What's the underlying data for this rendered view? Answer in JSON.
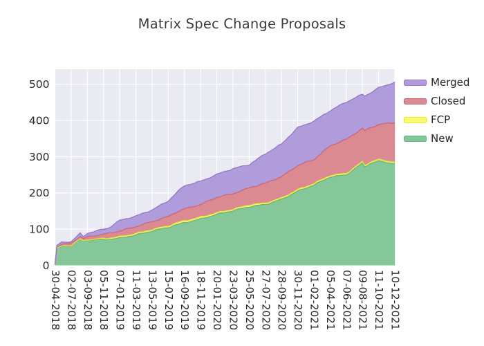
{
  "chart_data": {
    "type": "area",
    "stacked": true,
    "title": "Matrix Spec Change Proposals",
    "plot_background": "#eaeaf2",
    "grid_color": "#ffffff",
    "grid": true,
    "text_color": "#262626",
    "title_color": "#3c3c3c",
    "ylim": [
      0,
      541
    ],
    "yticks": [
      "0",
      "100",
      "200",
      "300",
      "400",
      "500"
    ],
    "ytick_values": [
      0,
      100,
      200,
      300,
      400,
      500
    ],
    "x_tick_labels": [
      "30-04-2018",
      "02-07-2018",
      "03-09-2018",
      "05-11-2018",
      "07-01-2019",
      "11-03-2019",
      "13-05-2019",
      "15-07-2019",
      "16-09-2019",
      "18-11-2019",
      "20-01-2020",
      "23-03-2020",
      "25-05-2020",
      "27-07-2020",
      "28-09-2020",
      "30-11-2020",
      "01-02-2021",
      "05-04-2021",
      "07-06-2021",
      "09-08-2021",
      "11-10-2021",
      "10-12-2021"
    ],
    "x_tick_positions": [
      0,
      1,
      2,
      3,
      4,
      5,
      6,
      7,
      8,
      9,
      10,
      11,
      12,
      13,
      14,
      15,
      16,
      17,
      18,
      19,
      20,
      21
    ],
    "legend_position": "right",
    "legend_order": [
      "Merged",
      "Closed",
      "FCP",
      "New"
    ],
    "x": [
      0,
      0.12,
      0.4,
      1,
      1.55,
      1.75,
      2,
      3,
      3.3,
      4,
      5,
      6,
      7,
      7.5,
      8,
      9,
      10,
      11,
      12,
      13,
      14,
      15,
      16,
      17,
      18,
      19,
      19.15,
      19.45,
      20,
      21
    ],
    "series": [
      {
        "name": "New",
        "fill": "#86c79a",
        "line": "#5fb67e",
        "values": [
          2,
          46,
          52,
          54,
          72,
          66,
          70,
          71,
          72,
          75,
          84,
          95,
          105,
          112,
          118,
          128,
          141,
          151,
          162,
          168,
          182,
          205,
          222,
          244,
          250,
          282,
          272,
          281,
          288,
          281
        ]
      },
      {
        "name": "FCP",
        "fill": "#fbfb72",
        "line": "#e8e833",
        "values": [
          0,
          1,
          1,
          1,
          1,
          1,
          1,
          3,
          3,
          4,
          4,
          4,
          4,
          5,
          5,
          5,
          4,
          4,
          5,
          4,
          4,
          4,
          4,
          4,
          4,
          4,
          4,
          4,
          4,
          4
        ]
      },
      {
        "name": "Closed",
        "fill": "#db8a92",
        "line": "#ce6672",
        "values": [
          0,
          4,
          5,
          6,
          7,
          6,
          8,
          12,
          13,
          16,
          19,
          22,
          26,
          30,
          33,
          35,
          43,
          43,
          47,
          55,
          59,
          67,
          66,
          82,
          94,
          92,
          95,
          94,
          97,
          109
        ]
      },
      {
        "name": "Merged",
        "fill": "#b09cdb",
        "line": "#9474ce",
        "values": [
          0,
          4,
          5,
          5,
          8,
          6,
          10,
          14,
          15,
          29,
          29,
          32,
          43,
          53,
          64,
          64,
          63,
          69,
          64,
          81,
          90,
          104,
          106,
          97,
          103,
          94,
          97,
          96,
          101,
          112
        ]
      }
    ]
  }
}
